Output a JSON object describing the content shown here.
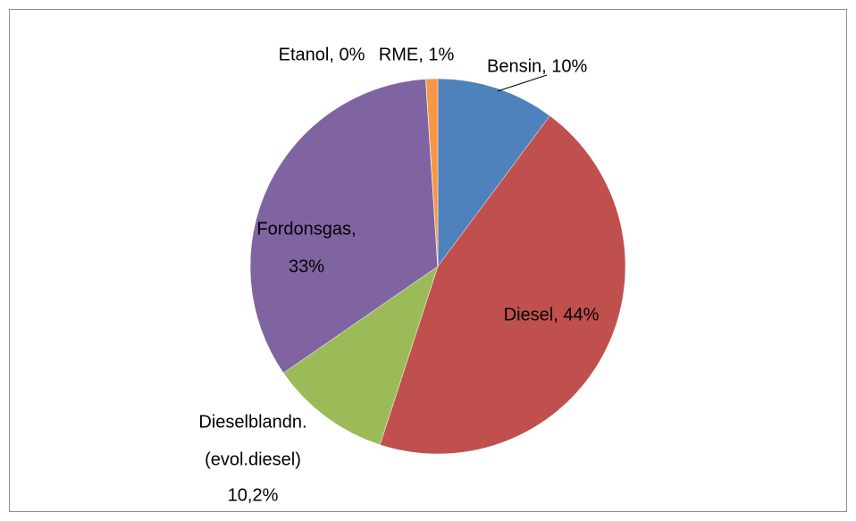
{
  "chart_data": {
    "type": "pie",
    "values": [
      10,
      44,
      10.2,
      33,
      0,
      1
    ],
    "value_labels": [
      [
        "Bensin, 10%"
      ],
      [
        "Diesel, 44%"
      ],
      [
        "Dieselblandn.",
        "(evol.diesel)",
        "10,2%"
      ],
      [
        "Fordonsgas,",
        "33%"
      ],
      [
        "Etanol, 0%"
      ],
      [
        "RME, 1%"
      ]
    ],
    "colors": [
      "#4f81bd",
      "#c0504d",
      "#9bbb59",
      "#8064a2",
      "#4bacc6",
      "#f79646"
    ]
  }
}
